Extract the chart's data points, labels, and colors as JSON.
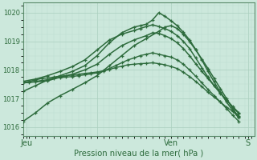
{
  "title": "Pression niveau de la mer( hPa )",
  "bg_color": "#cce8dc",
  "plot_bg_color": "#cce8dc",
  "grid_color_major": "#aacfbe",
  "grid_color_minor": "#bcddd0",
  "line_color": "#2d6b3c",
  "ylim": [
    1015.7,
    1020.35
  ],
  "yticks": [
    1016,
    1017,
    1018,
    1019,
    1020
  ],
  "xlim": [
    0,
    37.5
  ],
  "xtick_pos": [
    0.5,
    12,
    24,
    36.5
  ],
  "xtick_labels": [
    "Jeu",
    "",
    "Ven",
    "S"
  ],
  "series": [
    {
      "points": [
        [
          0,
          1017.55
        ],
        [
          1,
          1017.6
        ],
        [
          2,
          1017.65
        ],
        [
          3,
          1017.7
        ],
        [
          4,
          1017.72
        ],
        [
          5,
          1017.75
        ],
        [
          6,
          1017.78
        ],
        [
          7,
          1017.8
        ],
        [
          8,
          1017.82
        ],
        [
          9,
          1017.85
        ],
        [
          10,
          1017.88
        ],
        [
          11,
          1017.9
        ],
        [
          12,
          1017.93
        ],
        [
          13,
          1017.97
        ],
        [
          14,
          1018.05
        ],
        [
          15,
          1018.15
        ],
        [
          16,
          1018.25
        ],
        [
          17,
          1018.35
        ],
        [
          18,
          1018.42
        ],
        [
          19,
          1018.5
        ],
        [
          20,
          1018.55
        ],
        [
          21,
          1018.6
        ],
        [
          22,
          1018.55
        ],
        [
          23,
          1018.5
        ],
        [
          24,
          1018.45
        ],
        [
          25,
          1018.35
        ],
        [
          26,
          1018.2
        ],
        [
          27,
          1018.0
        ],
        [
          28,
          1017.78
        ],
        [
          29,
          1017.55
        ],
        [
          30,
          1017.32
        ],
        [
          31,
          1017.1
        ],
        [
          32,
          1016.88
        ],
        [
          33,
          1016.65
        ],
        [
          34,
          1016.42
        ],
        [
          35,
          1016.2
        ]
      ]
    },
    {
      "points": [
        [
          0,
          1017.55
        ],
        [
          1,
          1017.57
        ],
        [
          2,
          1017.6
        ],
        [
          3,
          1017.63
        ],
        [
          4,
          1017.66
        ],
        [
          5,
          1017.7
        ],
        [
          6,
          1017.73
        ],
        [
          7,
          1017.75
        ],
        [
          8,
          1017.77
        ],
        [
          9,
          1017.8
        ],
        [
          10,
          1017.83
        ],
        [
          11,
          1017.86
        ],
        [
          12,
          1017.9
        ],
        [
          13,
          1017.95
        ],
        [
          14,
          1018.02
        ],
        [
          15,
          1018.08
        ],
        [
          16,
          1018.13
        ],
        [
          17,
          1018.18
        ],
        [
          18,
          1018.2
        ],
        [
          19,
          1018.22
        ],
        [
          20,
          1018.23
        ],
        [
          21,
          1018.25
        ],
        [
          22,
          1018.22
        ],
        [
          23,
          1018.18
        ],
        [
          24,
          1018.12
        ],
        [
          25,
          1018.05
        ],
        [
          26,
          1017.92
        ],
        [
          27,
          1017.77
        ],
        [
          28,
          1017.6
        ],
        [
          29,
          1017.42
        ],
        [
          30,
          1017.22
        ],
        [
          31,
          1017.05
        ],
        [
          32,
          1016.88
        ],
        [
          33,
          1016.7
        ],
        [
          34,
          1016.55
        ],
        [
          35,
          1016.4
        ]
      ]
    },
    {
      "points": [
        [
          0,
          1017.55
        ],
        [
          2,
          1017.58
        ],
        [
          4,
          1017.62
        ],
        [
          6,
          1017.75
        ],
        [
          8,
          1017.85
        ],
        [
          10,
          1018.0
        ],
        [
          12,
          1018.2
        ],
        [
          14,
          1018.55
        ],
        [
          16,
          1018.85
        ],
        [
          18,
          1019.05
        ],
        [
          20,
          1019.2
        ],
        [
          21,
          1019.3
        ],
        [
          22,
          1019.28
        ],
        [
          23,
          1019.2
        ],
        [
          24,
          1019.1
        ],
        [
          25,
          1018.95
        ],
        [
          26,
          1018.75
        ],
        [
          27,
          1018.5
        ],
        [
          28,
          1018.22
        ],
        [
          29,
          1017.95
        ],
        [
          30,
          1017.7
        ],
        [
          31,
          1017.45
        ],
        [
          32,
          1017.2
        ],
        [
          33,
          1016.95
        ],
        [
          34,
          1016.7
        ],
        [
          35,
          1016.48
        ]
      ]
    },
    {
      "points": [
        [
          0,
          1017.6
        ],
        [
          2,
          1017.68
        ],
        [
          4,
          1017.8
        ],
        [
          6,
          1017.95
        ],
        [
          8,
          1018.12
        ],
        [
          10,
          1018.35
        ],
        [
          12,
          1018.7
        ],
        [
          14,
          1019.05
        ],
        [
          16,
          1019.25
        ],
        [
          18,
          1019.38
        ],
        [
          19,
          1019.45
        ],
        [
          20,
          1019.52
        ],
        [
          21,
          1019.58
        ],
        [
          22,
          1019.52
        ],
        [
          23,
          1019.45
        ],
        [
          24,
          1019.35
        ],
        [
          25,
          1019.2
        ],
        [
          26,
          1019.0
        ],
        [
          27,
          1018.75
        ],
        [
          28,
          1018.42
        ],
        [
          29,
          1018.08
        ],
        [
          30,
          1017.75
        ],
        [
          31,
          1017.45
        ],
        [
          32,
          1017.18
        ],
        [
          33,
          1016.95
        ],
        [
          34,
          1016.72
        ],
        [
          35,
          1016.5
        ]
      ]
    },
    {
      "points": [
        [
          0,
          1017.25
        ],
        [
          2,
          1017.45
        ],
        [
          4,
          1017.65
        ],
        [
          6,
          1017.8
        ],
        [
          8,
          1017.95
        ],
        [
          10,
          1018.15
        ],
        [
          12,
          1018.5
        ],
        [
          14,
          1018.95
        ],
        [
          16,
          1019.3
        ],
        [
          18,
          1019.5
        ],
        [
          19,
          1019.55
        ],
        [
          20,
          1019.6
        ],
        [
          21,
          1019.75
        ],
        [
          22,
          1020.0
        ],
        [
          23,
          1019.88
        ],
        [
          24,
          1019.72
        ],
        [
          25,
          1019.55
        ],
        [
          26,
          1019.32
        ],
        [
          27,
          1019.05
        ],
        [
          28,
          1018.72
        ],
        [
          29,
          1018.35
        ],
        [
          30,
          1017.95
        ],
        [
          31,
          1017.58
        ],
        [
          32,
          1017.22
        ],
        [
          33,
          1016.88
        ],
        [
          34,
          1016.58
        ],
        [
          35,
          1016.32
        ]
      ]
    },
    {
      "points": [
        [
          0,
          1016.2
        ],
        [
          2,
          1016.5
        ],
        [
          4,
          1016.85
        ],
        [
          6,
          1017.1
        ],
        [
          8,
          1017.32
        ],
        [
          10,
          1017.55
        ],
        [
          12,
          1017.8
        ],
        [
          14,
          1018.15
        ],
        [
          16,
          1018.5
        ],
        [
          18,
          1018.85
        ],
        [
          20,
          1019.1
        ],
        [
          22,
          1019.35
        ],
        [
          23,
          1019.5
        ],
        [
          24,
          1019.55
        ],
        [
          25,
          1019.45
        ],
        [
          26,
          1019.25
        ],
        [
          27,
          1019.0
        ],
        [
          28,
          1018.7
        ],
        [
          29,
          1018.38
        ],
        [
          30,
          1018.05
        ],
        [
          31,
          1017.7
        ],
        [
          32,
          1017.35
        ],
        [
          33,
          1017.0
        ],
        [
          34,
          1016.65
        ],
        [
          35,
          1016.35
        ]
      ]
    }
  ]
}
